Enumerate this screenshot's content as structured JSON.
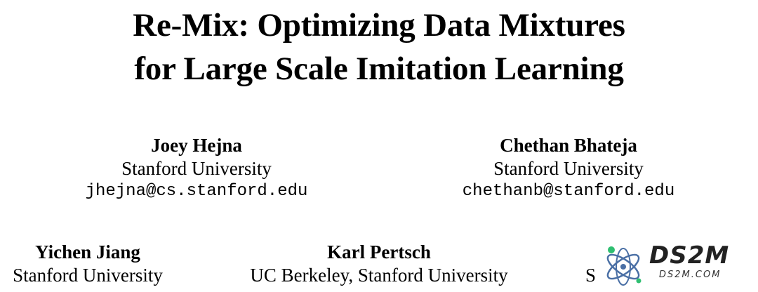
{
  "title": {
    "line1": "Re-Mix: Optimizing Data Mixtures",
    "line2": "for Large Scale Imitation Learning"
  },
  "authors": [
    {
      "name": "Joey Hejna",
      "affiliation": "Stanford University",
      "email": "jhejna@cs.stanford.edu"
    },
    {
      "name": "Chethan Bhateja",
      "affiliation": "Stanford University",
      "email": "chethanb@stanford.edu"
    },
    {
      "name": "Yichen Jiang",
      "affiliation": "Stanford University"
    },
    {
      "name": "Karl Pertsch",
      "affiliation": "UC Berkeley, Stanford University"
    },
    {
      "affiliation": "S"
    }
  ],
  "watermark": {
    "brand": "DS2M",
    "domain": "DS2M.COM",
    "colors": {
      "ring": "#4a6fa5",
      "dot": "#2fbf71",
      "text": "#222222"
    }
  }
}
